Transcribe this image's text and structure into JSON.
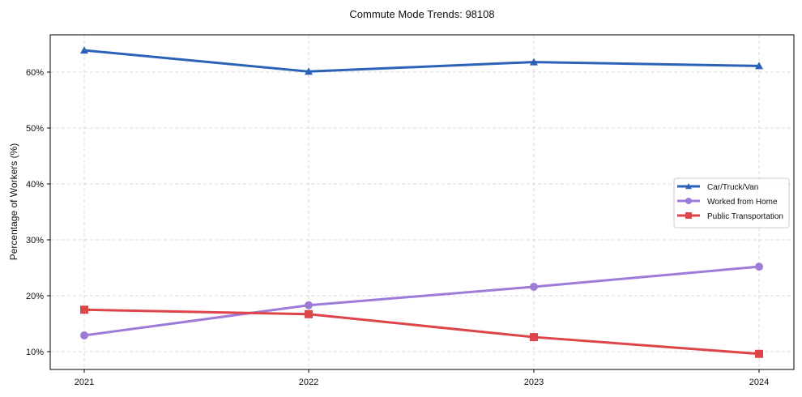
{
  "chart_data": {
    "type": "line",
    "title": "Commute Mode Trends: 98108",
    "xlabel": "",
    "ylabel": "Percentage of Workers (%)",
    "categories": [
      "2021",
      "2022",
      "2023",
      "2024"
    ],
    "ylim": [
      7,
      66.8
    ],
    "yticks": [
      10,
      20,
      30,
      40,
      50,
      60
    ],
    "ytick_labels": [
      "10%",
      "20%",
      "30%",
      "40%",
      "50%",
      "60%"
    ],
    "grid": true,
    "legend_position": "center right",
    "series": [
      {
        "name": "Car/Truck/Van",
        "color": "#2b62b8",
        "marker": "triangle",
        "values": [
          63.9,
          60.1,
          61.8,
          61.1
        ]
      },
      {
        "name": "Worked from Home",
        "color": "#9f7bd9",
        "marker": "circle",
        "values": [
          12.9,
          18.3,
          21.6,
          25.2
        ]
      },
      {
        "name": "Public Transportation",
        "color": "#dd4548",
        "marker": "square",
        "values": [
          17.5,
          16.7,
          12.6,
          9.6
        ]
      }
    ]
  }
}
